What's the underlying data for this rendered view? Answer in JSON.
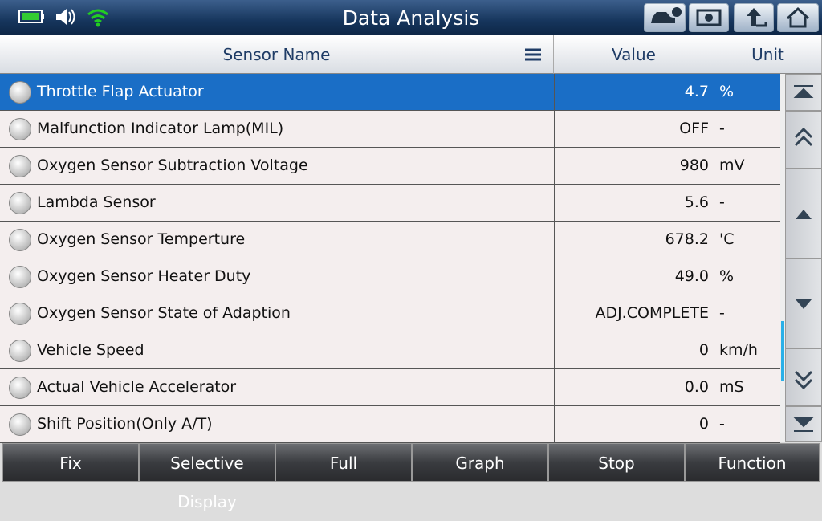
{
  "header": {
    "title": "Data Analysis"
  },
  "table": {
    "columns": [
      "Sensor Name",
      "Value",
      "Unit"
    ],
    "rows": [
      [
        "Throttle Flap Actuator",
        "4.7",
        "%"
      ],
      [
        "Malfunction Indicator Lamp(MIL)",
        "OFF",
        "-"
      ],
      [
        "Oxygen Sensor Subtraction Voltage",
        "980",
        "mV"
      ],
      [
        "Lambda Sensor",
        "5.6",
        "-"
      ],
      [
        "Oxygen Sensor Temperture",
        "678.2",
        "'C"
      ],
      [
        "Oxygen Sensor Heater Duty",
        "49.0",
        "%"
      ],
      [
        "Oxygen Sensor State of Adaption",
        "ADJ.COMPLETE",
        "-"
      ],
      [
        "Vehicle Speed",
        "0",
        "km/h"
      ],
      [
        "Actual Vehicle Accelerator",
        "0.0",
        "mS"
      ],
      [
        "Shift Position(Only A/T)",
        "0",
        "-"
      ]
    ],
    "selected_row": 0
  },
  "footer": {
    "buttons": [
      "Fix",
      "Selective Display",
      "Full",
      "Graph",
      "Stop",
      "Function"
    ]
  }
}
